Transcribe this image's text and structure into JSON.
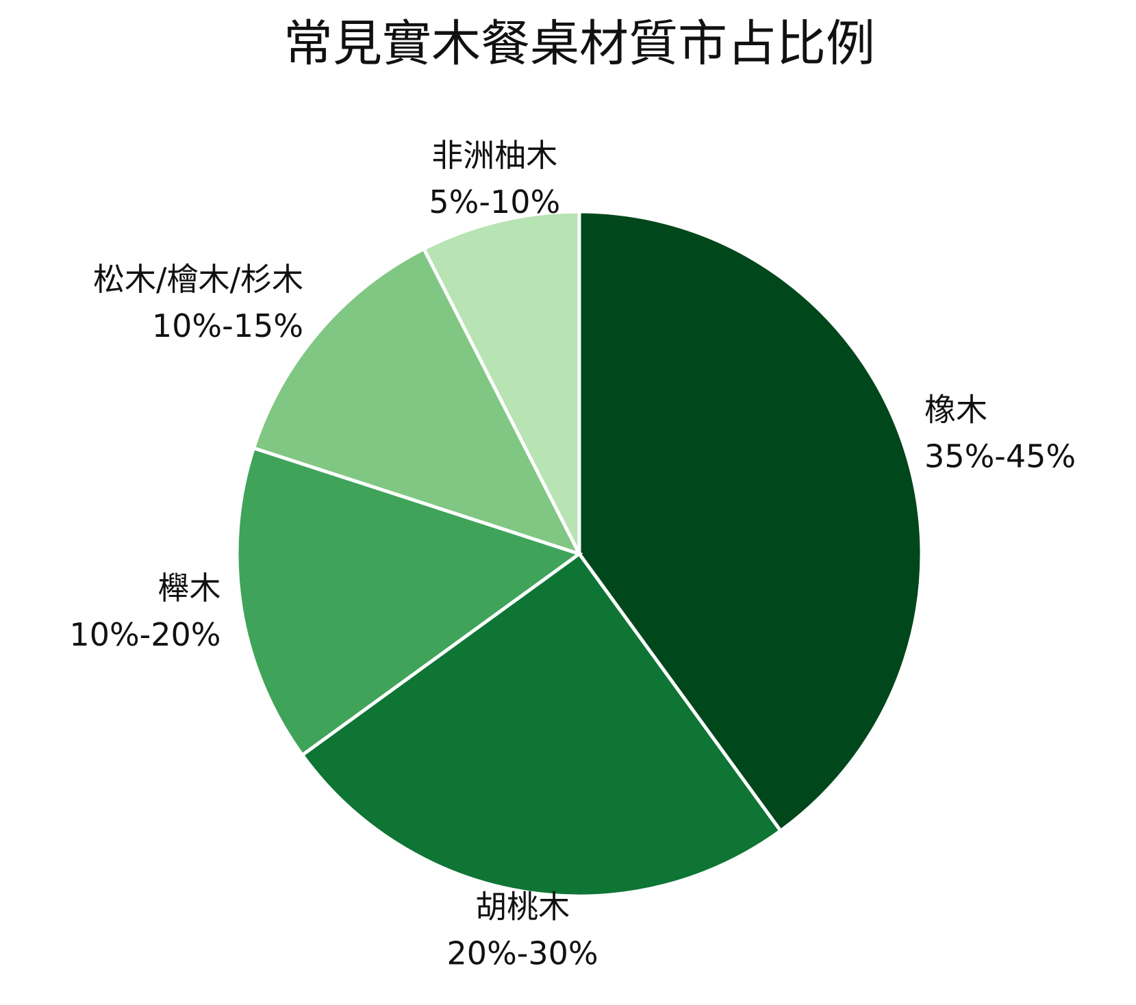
{
  "chart_data": {
    "type": "pie",
    "title": "常見實木餐桌材質市占比例",
    "categories": [
      "橡木",
      "胡桃木",
      "櫸木",
      "松木/檜木/杉木",
      "非洲柚木"
    ],
    "values": [
      40,
      25,
      15,
      12.5,
      7.5
    ],
    "labels": [
      "35%-45%",
      "20%-30%",
      "10%-20%",
      "10%-15%",
      "5%-10%"
    ],
    "colors": [
      "#00471b",
      "#0e7535",
      "#3fa45a",
      "#80c783",
      "#b8e3b3"
    ]
  }
}
